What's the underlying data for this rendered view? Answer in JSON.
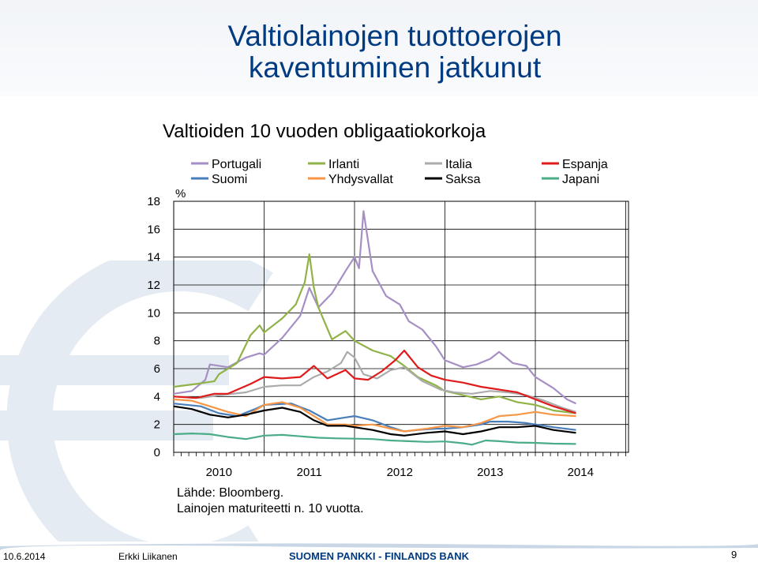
{
  "slide": {
    "title": "Valtiolainojen tuottoerojen kaventuminen jatkunut",
    "subtitle": "Valtioiden 10 vuoden obligaatiokorkoja",
    "source_line1": "Lähde: Bloomberg.",
    "source_line2": "Lainojen maturiteetti n. 10 vuotta.",
    "footer": {
      "date": "10.6.2014",
      "author": "Erkki Liikanen",
      "bank": "SUOMEN PANKKI - FINLANDS BANK",
      "page": "9"
    }
  },
  "chart_data": {
    "type": "line",
    "title": "Valtioiden 10 vuoden obligaatiokorkoja",
    "ylabel": "%",
    "xlabel": "",
    "ylim": [
      0,
      18
    ],
    "yticks": [
      "0",
      "2",
      "4",
      "6",
      "8",
      "10",
      "12",
      "14",
      "16",
      "18"
    ],
    "xlim": [
      2010.0,
      2014.45
    ],
    "xticks": [
      "2010",
      "2011",
      "2012",
      "2013",
      "2014"
    ],
    "grid": true,
    "legend_position": "top",
    "series": [
      {
        "name": "Portugali",
        "color": "#a58fc5",
        "x": [
          2010.0,
          2010.2,
          2010.35,
          2010.4,
          2010.6,
          2010.8,
          2010.95,
          2011.0,
          2011.2,
          2011.4,
          2011.5,
          2011.6,
          2011.75,
          2011.9,
          2012.0,
          2012.05,
          2012.1,
          2012.2,
          2012.35,
          2012.5,
          2012.6,
          2012.75,
          2012.9,
          2013.0,
          2013.2,
          2013.35,
          2013.5,
          2013.6,
          2013.75,
          2013.9,
          2014.0,
          2014.2,
          2014.35,
          2014.45
        ],
        "y": [
          4.2,
          4.4,
          5.2,
          6.3,
          6.1,
          6.8,
          7.1,
          7.0,
          8.2,
          9.8,
          11.8,
          10.4,
          11.4,
          13.0,
          14.0,
          13.2,
          17.3,
          13.0,
          11.2,
          10.6,
          9.4,
          8.8,
          7.6,
          6.6,
          6.1,
          6.3,
          6.7,
          7.2,
          6.4,
          6.2,
          5.4,
          4.6,
          3.8,
          3.5
        ]
      },
      {
        "name": "Irlanti",
        "color": "#8fb347",
        "x": [
          2010.0,
          2010.25,
          2010.45,
          2010.5,
          2010.7,
          2010.85,
          2010.95,
          2011.0,
          2011.2,
          2011.35,
          2011.45,
          2011.5,
          2011.55,
          2011.6,
          2011.75,
          2011.9,
          2012.0,
          2012.2,
          2012.4,
          2012.55,
          2012.7,
          2012.9,
          2013.0,
          2013.2,
          2013.4,
          2013.6,
          2013.8,
          2014.0,
          2014.2,
          2014.45
        ],
        "y": [
          4.7,
          4.9,
          5.1,
          5.6,
          6.4,
          8.4,
          9.1,
          8.6,
          9.6,
          10.6,
          12.2,
          14.2,
          11.8,
          10.4,
          8.1,
          8.7,
          8.0,
          7.3,
          6.9,
          6.2,
          5.4,
          4.8,
          4.4,
          4.1,
          3.8,
          4.0,
          3.6,
          3.4,
          3.0,
          2.8
        ]
      },
      {
        "name": "Italia",
        "color": "#ababab",
        "x": [
          2010.0,
          2010.3,
          2010.5,
          2010.8,
          2011.0,
          2011.2,
          2011.4,
          2011.55,
          2011.7,
          2011.85,
          2011.92,
          2012.0,
          2012.1,
          2012.25,
          2012.4,
          2012.55,
          2012.75,
          2012.95,
          2013.1,
          2013.3,
          2013.5,
          2013.7,
          2013.9,
          2014.1,
          2014.3,
          2014.45
        ],
        "y": [
          4.0,
          3.9,
          4.1,
          4.3,
          4.7,
          4.8,
          4.8,
          5.4,
          5.8,
          6.4,
          7.2,
          6.8,
          5.6,
          5.3,
          5.9,
          6.1,
          5.1,
          4.5,
          4.3,
          4.2,
          4.4,
          4.3,
          4.1,
          3.7,
          3.2,
          2.9
        ]
      },
      {
        "name": "Espanja",
        "color": "#e01b1b",
        "x": [
          2010.0,
          2010.25,
          2010.45,
          2010.6,
          2010.85,
          2011.0,
          2011.2,
          2011.4,
          2011.55,
          2011.7,
          2011.9,
          2012.0,
          2012.15,
          2012.3,
          2012.45,
          2012.55,
          2012.7,
          2012.85,
          2013.0,
          2013.2,
          2013.4,
          2013.6,
          2013.8,
          2014.0,
          2014.2,
          2014.45
        ],
        "y": [
          4.0,
          3.9,
          4.2,
          4.2,
          4.9,
          5.4,
          5.3,
          5.4,
          6.2,
          5.3,
          5.9,
          5.3,
          5.2,
          5.8,
          6.6,
          7.3,
          6.1,
          5.5,
          5.2,
          5.0,
          4.7,
          4.5,
          4.3,
          3.8,
          3.3,
          2.8
        ]
      },
      {
        "name": "Suomi",
        "color": "#4a7ebb",
        "x": [
          2010.0,
          2010.3,
          2010.5,
          2010.7,
          2010.9,
          2011.0,
          2011.3,
          2011.5,
          2011.7,
          2011.9,
          2012.0,
          2012.2,
          2012.4,
          2012.55,
          2012.7,
          2012.9,
          2013.0,
          2013.2,
          2013.4,
          2013.5,
          2013.7,
          2013.9,
          2014.0,
          2014.2,
          2014.45
        ],
        "y": [
          3.5,
          3.3,
          2.8,
          2.6,
          3.1,
          3.4,
          3.5,
          3.0,
          2.3,
          2.5,
          2.6,
          2.3,
          1.8,
          1.5,
          1.6,
          1.7,
          1.7,
          1.8,
          2.0,
          2.2,
          2.2,
          2.1,
          2.0,
          1.8,
          1.6
        ]
      },
      {
        "name": "Yhdysvallat",
        "color": "#f79646",
        "x": [
          2010.0,
          2010.2,
          2010.4,
          2010.6,
          2010.8,
          2011.0,
          2011.2,
          2011.4,
          2011.55,
          2011.7,
          2011.9,
          2012.0,
          2012.2,
          2012.4,
          2012.55,
          2012.8,
          2013.0,
          2013.2,
          2013.4,
          2013.6,
          2013.8,
          2014.0,
          2014.2,
          2014.45
        ],
        "y": [
          3.8,
          3.7,
          3.3,
          2.9,
          2.6,
          3.4,
          3.6,
          3.2,
          2.6,
          2.0,
          2.0,
          1.9,
          2.0,
          1.7,
          1.5,
          1.7,
          1.9,
          1.8,
          2.1,
          2.6,
          2.7,
          2.9,
          2.7,
          2.6
        ]
      },
      {
        "name": "Saksa",
        "color": "#000000",
        "x": [
          2010.0,
          2010.2,
          2010.4,
          2010.6,
          2010.8,
          2011.0,
          2011.2,
          2011.4,
          2011.55,
          2011.7,
          2011.9,
          2012.0,
          2012.2,
          2012.4,
          2012.55,
          2012.8,
          2013.0,
          2013.2,
          2013.4,
          2013.6,
          2013.8,
          2014.0,
          2014.2,
          2014.45
        ],
        "y": [
          3.3,
          3.1,
          2.7,
          2.5,
          2.7,
          3.0,
          3.2,
          2.9,
          2.3,
          1.9,
          1.9,
          1.8,
          1.6,
          1.3,
          1.2,
          1.4,
          1.5,
          1.3,
          1.5,
          1.8,
          1.8,
          1.9,
          1.6,
          1.4
        ]
      },
      {
        "name": "Japani",
        "color": "#4bac88",
        "x": [
          2010.0,
          2010.2,
          2010.4,
          2010.6,
          2010.8,
          2011.0,
          2011.2,
          2011.4,
          2011.6,
          2011.8,
          2012.0,
          2012.2,
          2012.4,
          2012.6,
          2012.8,
          2013.0,
          2013.2,
          2013.3,
          2013.45,
          2013.6,
          2013.8,
          2014.0,
          2014.2,
          2014.45
        ],
        "y": [
          1.3,
          1.35,
          1.3,
          1.1,
          0.95,
          1.2,
          1.25,
          1.15,
          1.05,
          1.0,
          0.98,
          0.95,
          0.85,
          0.8,
          0.75,
          0.78,
          0.65,
          0.55,
          0.85,
          0.8,
          0.7,
          0.68,
          0.62,
          0.6
        ]
      }
    ]
  }
}
